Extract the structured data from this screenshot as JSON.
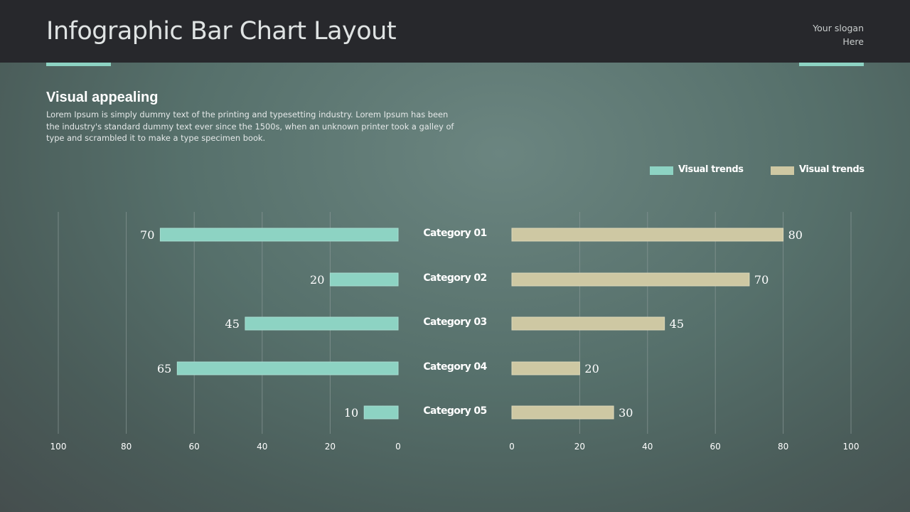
{
  "header": {
    "title": "Infographic Bar Chart Layout",
    "slogan_line1": "Your slogan",
    "slogan_line2": "Here"
  },
  "intro": {
    "heading": "Visual appealing",
    "body": "Lorem Ipsum is simply dummy text of the printing and typesetting industry. Lorem Ipsum has been the industry's standard dummy text ever since the 1500s, when an unknown printer took a galley of type and scrambled it to make a type specimen book."
  },
  "colors": {
    "series_a": "#8dd3c3",
    "series_b": "#cec8a3",
    "header_bg": "#27282c",
    "gridline": "#8a9997"
  },
  "chart_data": {
    "type": "bar",
    "orientation": "horizontal-butterfly",
    "categories": [
      "Category 01",
      "Category 02",
      "Category 03",
      "Category 04",
      "Category 05"
    ],
    "series": [
      {
        "name": "Visual trends",
        "values": [
          70,
          20,
          45,
          65,
          10
        ],
        "side": "left"
      },
      {
        "name": "Visual trends",
        "values": [
          80,
          70,
          45,
          20,
          30
        ],
        "side": "right"
      }
    ],
    "xlim": [
      0,
      100
    ],
    "ticks": [
      0,
      20,
      40,
      60,
      80,
      100
    ],
    "grid": true,
    "legend": "top-right"
  }
}
